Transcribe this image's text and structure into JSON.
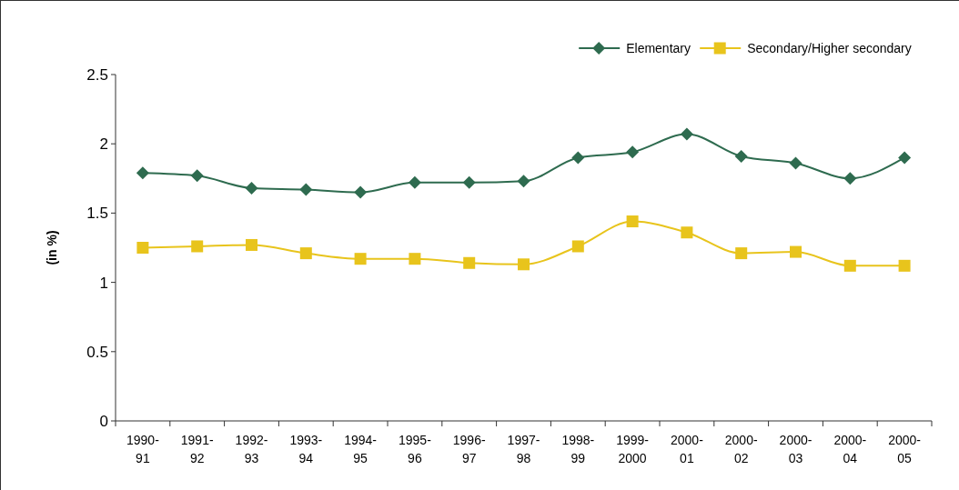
{
  "chart_data": {
    "type": "line",
    "ylabel": "(in %)",
    "categories": [
      "1990-91",
      "1991-92",
      "1992-93",
      "1993-94",
      "1994-95",
      "1995-96",
      "1996-97",
      "1997-98",
      "1998-99",
      "1999-2000",
      "2000-01",
      "2000-02",
      "2000-03",
      "2000-04",
      "2000-05"
    ],
    "series": [
      {
        "name": "Elementary",
        "color": "#2e6b4f",
        "marker": "diamond",
        "values": [
          1.79,
          1.77,
          1.68,
          1.67,
          1.65,
          1.72,
          1.72,
          1.73,
          1.9,
          1.94,
          2.07,
          1.91,
          1.86,
          1.75,
          1.9
        ]
      },
      {
        "name": "Secondary/Higher secondary",
        "color": "#e8c41c",
        "marker": "square",
        "values": [
          1.25,
          1.26,
          1.27,
          1.21,
          1.17,
          1.17,
          1.14,
          1.13,
          1.26,
          1.44,
          1.36,
          1.21,
          1.22,
          1.12,
          1.12
        ]
      }
    ],
    "ylim": [
      0,
      2.5
    ],
    "yticks": [
      0,
      0.5,
      1,
      1.5,
      2,
      2.5
    ],
    "grid": false,
    "legend": "top right"
  }
}
